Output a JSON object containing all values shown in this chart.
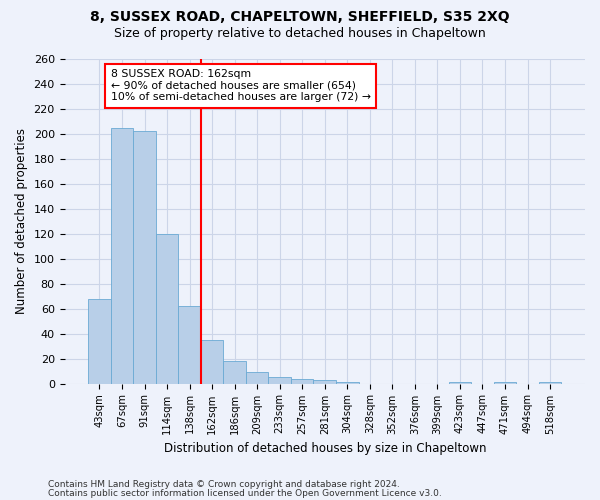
{
  "title1": "8, SUSSEX ROAD, CHAPELTOWN, SHEFFIELD, S35 2XQ",
  "title2": "Size of property relative to detached houses in Chapeltown",
  "xlabel": "Distribution of detached houses by size in Chapeltown",
  "ylabel": "Number of detached properties",
  "categories": [
    "43sqm",
    "67sqm",
    "91sqm",
    "114sqm",
    "138sqm",
    "162sqm",
    "186sqm",
    "209sqm",
    "233sqm",
    "257sqm",
    "281sqm",
    "304sqm",
    "328sqm",
    "352sqm",
    "376sqm",
    "399sqm",
    "423sqm",
    "447sqm",
    "471sqm",
    "494sqm",
    "518sqm"
  ],
  "values": [
    68,
    205,
    202,
    120,
    62,
    35,
    18,
    9,
    5,
    4,
    3,
    1,
    0,
    0,
    0,
    0,
    1,
    0,
    1,
    0,
    1
  ],
  "bar_color": "#b8cfe8",
  "bar_edge_color": "#6aaad4",
  "vline_index": 4.5,
  "annotation_text": "8 SUSSEX ROAD: 162sqm\n← 90% of detached houses are smaller (654)\n10% of semi-detached houses are larger (72) →",
  "annotation_box_color": "white",
  "annotation_box_edge_color": "red",
  "vline_color": "red",
  "ylim": [
    0,
    260
  ],
  "yticks": [
    0,
    20,
    40,
    60,
    80,
    100,
    120,
    140,
    160,
    180,
    200,
    220,
    240,
    260
  ],
  "footer1": "Contains HM Land Registry data © Crown copyright and database right 2024.",
  "footer2": "Contains public sector information licensed under the Open Government Licence v3.0.",
  "bg_color": "#eef2fb",
  "grid_color": "#ccd5e8",
  "figsize": [
    6.0,
    5.0
  ],
  "dpi": 100
}
